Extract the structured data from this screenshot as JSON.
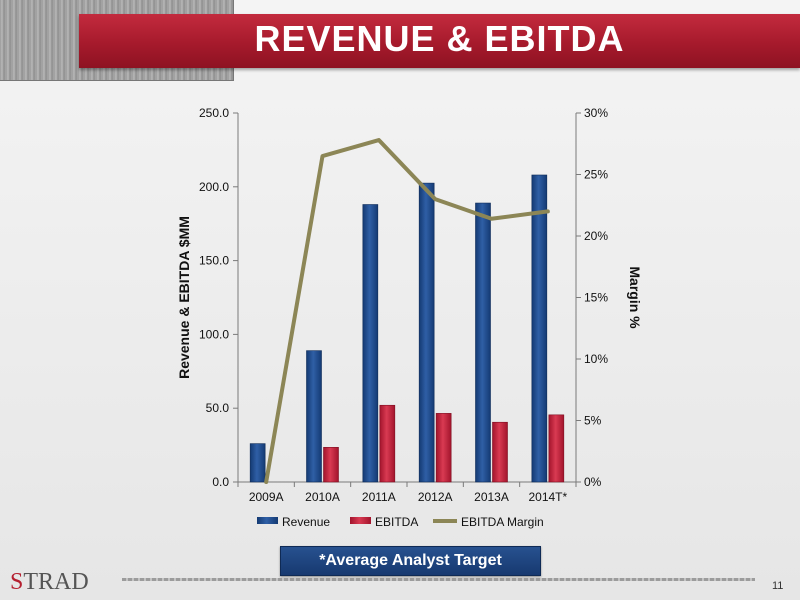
{
  "slide": {
    "title": "REVENUE & EBITDA",
    "note": "*Average Analyst Target",
    "logo_text": "STRAD",
    "page_number": "11"
  },
  "colors": {
    "banner": "#a61a2c",
    "revenue": "#1f4a8c",
    "ebitda": "#c4213b",
    "margin": "#8c8656",
    "note_box": "#1f4a8c"
  },
  "chart_data": {
    "type": "bar",
    "categories": [
      "2009A",
      "2010A",
      "2011A",
      "2012A",
      "2013A",
      "2014T*"
    ],
    "series": [
      {
        "name": "Revenue",
        "type": "bar",
        "axis": "left",
        "values": [
          26.0,
          89.0,
          188.0,
          202.5,
          189.0,
          208.0
        ]
      },
      {
        "name": "EBITDA",
        "type": "bar",
        "axis": "left",
        "values": [
          0.0,
          23.5,
          52.0,
          46.5,
          40.5,
          45.5
        ]
      },
      {
        "name": "EBITDA Margin",
        "type": "line",
        "axis": "right",
        "values": [
          0.0,
          26.5,
          27.8,
          23.0,
          21.4,
          22.0
        ]
      }
    ],
    "ylabel": "Revenue & EBITDA $MM",
    "y2label": "Margin %",
    "ylim": [
      0,
      250
    ],
    "y2lim": [
      0,
      30
    ],
    "yticks": [
      "0.0",
      "50.0",
      "100.0",
      "150.0",
      "200.0",
      "250.0"
    ],
    "y2ticks": [
      "0%",
      "5%",
      "10%",
      "15%",
      "20%",
      "25%",
      "30%"
    ],
    "grid": false,
    "legend": "bottom"
  }
}
